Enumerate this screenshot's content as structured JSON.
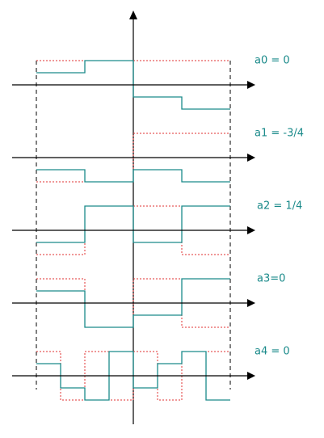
{
  "labels": [
    "a0 = 0",
    "a1 = -3/4",
    "a2 = 1/4",
    "a3=0",
    "a4 = 0"
  ]
}
